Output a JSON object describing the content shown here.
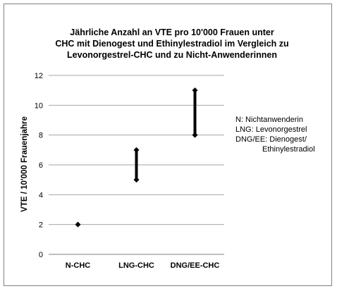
{
  "chart_data": {
    "type": "range",
    "title_lines": [
      "Jährliche Anzahl an VTE pro 10'000 Frauen unter",
      "CHC mit Dienogest und Ethinylestradiol im Vergleich zu",
      "Levonorgestrel-CHC und zu Nicht-Anwenderinnen"
    ],
    "ylabel": "VTE / 10'000 Frauenjahre",
    "xlabel": "",
    "ylim": [
      0,
      12
    ],
    "yticks": [
      "0",
      "2",
      "4",
      "6",
      "8",
      "10",
      "12"
    ],
    "grid": true,
    "categories": [
      "N-CHC",
      "LNG-CHC",
      "DNG/EE-CHC"
    ],
    "ranges": [
      {
        "category": "N-CHC",
        "low": 2,
        "high": 2
      },
      {
        "category": "LNG-CHC",
        "low": 5,
        "high": 7
      },
      {
        "category": "DNG/EE-CHC",
        "low": 8,
        "high": 11
      }
    ],
    "legend_lines": [
      "N: Nichtanwenderin",
      "LNG: Levonorgestrel",
      "DNG/EE: Dienogest/",
      "Ethinylestradiol"
    ],
    "legend_position": "right"
  }
}
